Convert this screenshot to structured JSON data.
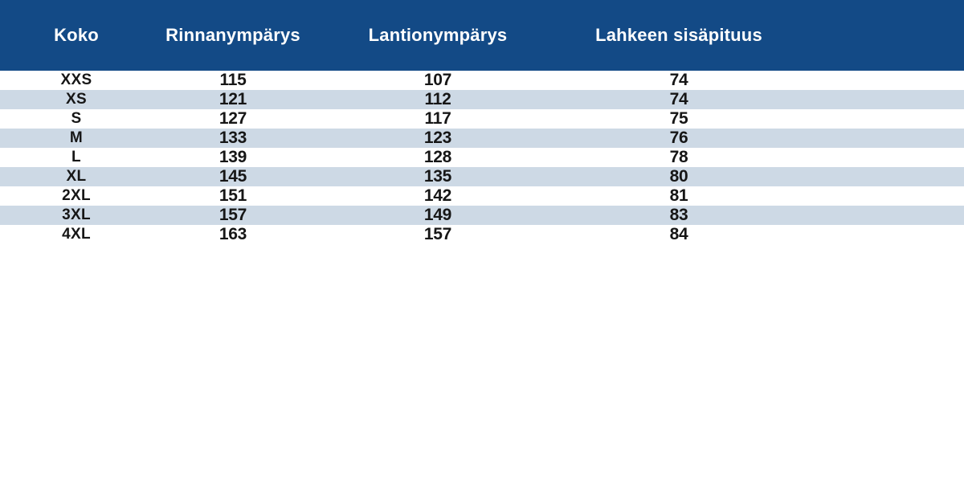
{
  "page": {
    "background": "#FFFFFF"
  },
  "colors": {
    "header_bg": "#134A86",
    "header_text": "#FFFFFF",
    "row_even_bg": "#FFFFFF",
    "row_odd_bg": "#CDD9E5",
    "body_text": "#161616"
  },
  "chart_data": {
    "type": "table",
    "title": "",
    "columns": [
      "Koko",
      "Rinnanympärys",
      "Lantionympärys",
      "Lahkeen sisäpituus"
    ],
    "rows": [
      [
        "XXS",
        115,
        107,
        74
      ],
      [
        "XS",
        121,
        112,
        74
      ],
      [
        "S",
        127,
        117,
        75
      ],
      [
        "M",
        133,
        123,
        76
      ],
      [
        "L",
        139,
        128,
        78
      ],
      [
        "XL",
        145,
        135,
        80
      ],
      [
        "2XL",
        151,
        142,
        81
      ],
      [
        "3XL",
        157,
        149,
        83
      ],
      [
        "4XL",
        163,
        157,
        84
      ]
    ],
    "layout": {
      "header_position": "top",
      "zebra_striping": true,
      "grid": false
    }
  }
}
